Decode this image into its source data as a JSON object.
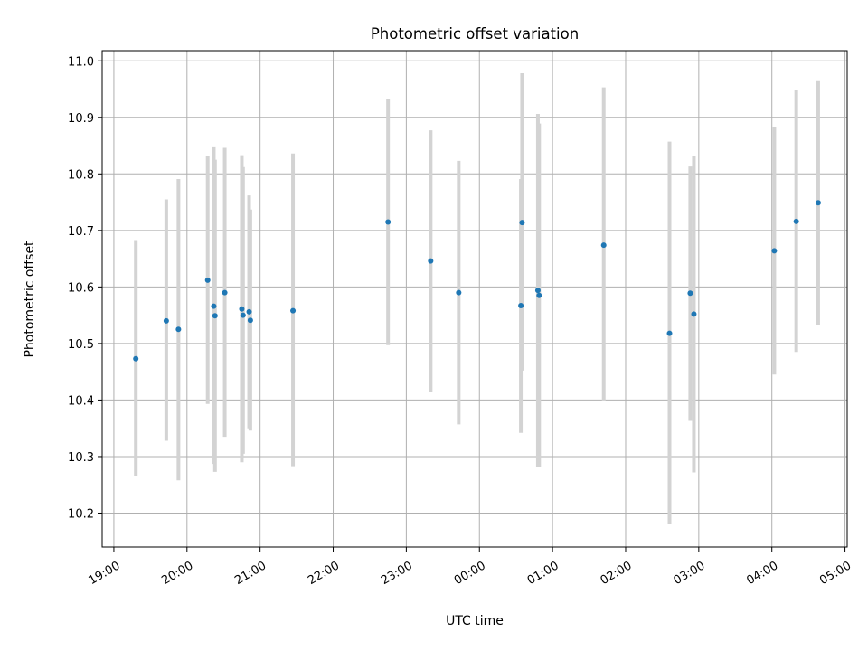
{
  "chart_data": {
    "type": "scatter",
    "title": "Photometric offset variation",
    "xlabel": "UTC time",
    "ylabel": "Photometric offset",
    "x_ticks": [
      "19:00",
      "20:00",
      "21:00",
      "22:00",
      "23:00",
      "00:00",
      "01:00",
      "02:00",
      "03:00",
      "04:00",
      "05:00"
    ],
    "x_tick_hours": [
      19,
      20,
      21,
      22,
      23,
      24,
      25,
      26,
      27,
      28,
      29
    ],
    "xlim_hours": [
      18.84,
      29.03
    ],
    "y_ticks": [
      "10.2",
      "10.3",
      "10.4",
      "10.5",
      "10.6",
      "10.7",
      "10.8",
      "10.9",
      "11.0"
    ],
    "ylim": [
      10.14,
      11.018
    ],
    "grid": true,
    "marker_color": "#1f77b4",
    "errorbar_color": "#d3d3d3",
    "points": [
      {
        "t": "19:18",
        "y": 10.473,
        "lo": 10.265,
        "hi": 10.683
      },
      {
        "t": "19:43",
        "y": 10.54,
        "lo": 10.328,
        "hi": 10.755
      },
      {
        "t": "19:53",
        "y": 10.525,
        "lo": 10.258,
        "hi": 10.791
      },
      {
        "t": "20:17",
        "y": 10.612,
        "lo": 10.393,
        "hi": 10.832
      },
      {
        "t": "20:22",
        "y": 10.566,
        "lo": 10.287,
        "hi": 10.847
      },
      {
        "t": "20:23",
        "y": 10.549,
        "lo": 10.273,
        "hi": 10.825
      },
      {
        "t": "20:31",
        "y": 10.59,
        "lo": 10.335,
        "hi": 10.846
      },
      {
        "t": "20:45",
        "y": 10.561,
        "lo": 10.29,
        "hi": 10.833
      },
      {
        "t": "20:46",
        "y": 10.55,
        "lo": 10.305,
        "hi": 10.812
      },
      {
        "t": "20:51",
        "y": 10.556,
        "lo": 10.35,
        "hi": 10.762
      },
      {
        "t": "20:52",
        "y": 10.541,
        "lo": 10.346,
        "hi": 10.737
      },
      {
        "t": "21:27",
        "y": 10.558,
        "lo": 10.283,
        "hi": 10.836
      },
      {
        "t": "22:45",
        "y": 10.715,
        "lo": 10.497,
        "hi": 10.932
      },
      {
        "t": "23:20",
        "y": 10.646,
        "lo": 10.415,
        "hi": 10.877
      },
      {
        "t": "23:43",
        "y": 10.59,
        "lo": 10.357,
        "hi": 10.823
      },
      {
        "t": "00:34",
        "y": 10.567,
        "lo": 10.342,
        "hi": 10.791
      },
      {
        "t": "00:35",
        "y": 10.714,
        "lo": 10.452,
        "hi": 10.978
      },
      {
        "t": "00:48",
        "y": 10.594,
        "lo": 10.282,
        "hi": 10.906
      },
      {
        "t": "00:49",
        "y": 10.585,
        "lo": 10.281,
        "hi": 10.889
      },
      {
        "t": "01:42",
        "y": 10.674,
        "lo": 10.398,
        "hi": 10.953
      },
      {
        "t": "02:36",
        "y": 10.518,
        "lo": 10.18,
        "hi": 10.857
      },
      {
        "t": "02:53",
        "y": 10.589,
        "lo": 10.363,
        "hi": 10.813
      },
      {
        "t": "02:56",
        "y": 10.552,
        "lo": 10.272,
        "hi": 10.832
      },
      {
        "t": "04:02",
        "y": 10.664,
        "lo": 10.445,
        "hi": 10.883
      },
      {
        "t": "04:20",
        "y": 10.716,
        "lo": 10.485,
        "hi": 10.948
      },
      {
        "t": "04:38",
        "y": 10.749,
        "lo": 10.533,
        "hi": 10.964
      }
    ]
  }
}
